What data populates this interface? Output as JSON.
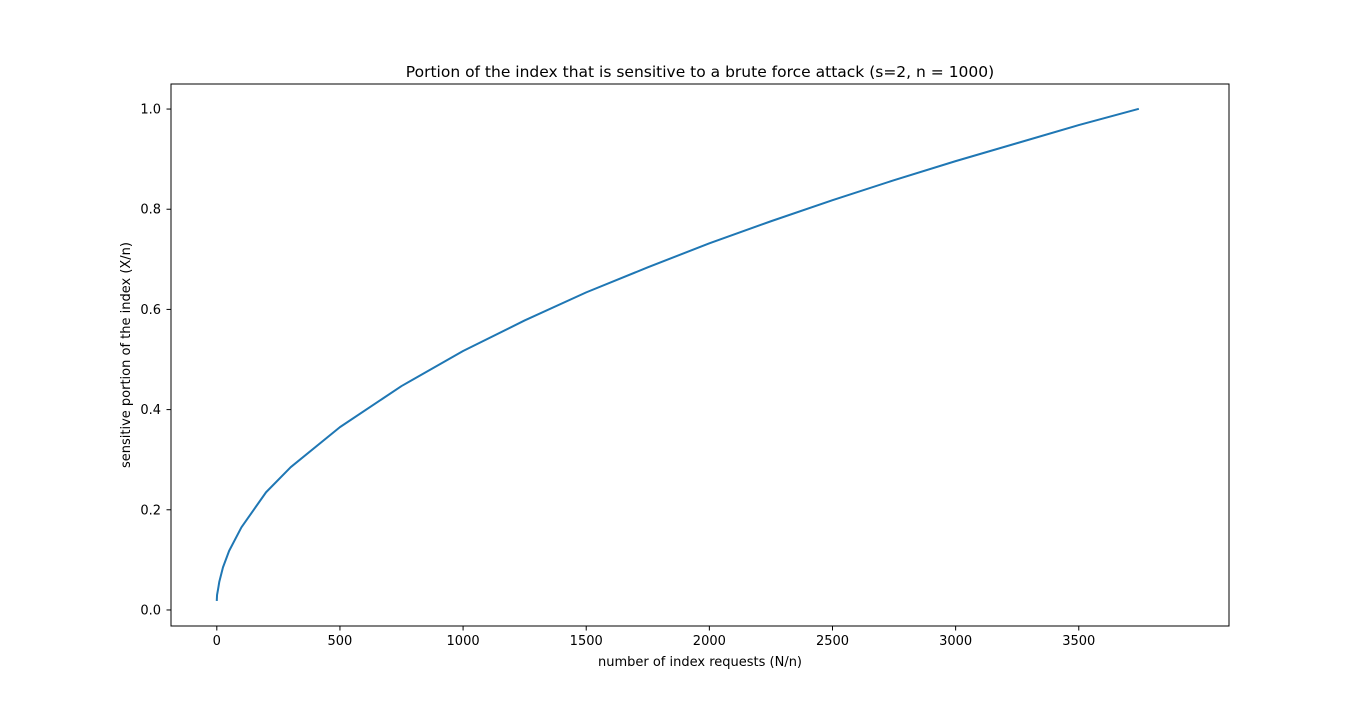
{
  "chart_data": {
    "type": "line",
    "title": "Portion of the index that is sensitive to a brute force attack (s=2, n = 1000)",
    "xlabel": "number of index requests (N/n)",
    "ylabel": "sensitive portion of the index (X/n)",
    "xlim": [
      -186,
      4110
    ],
    "ylim": [
      -0.032,
      1.05
    ],
    "xticks": [
      0,
      500,
      1000,
      1500,
      2000,
      2500,
      3000,
      3500
    ],
    "yticks": [
      0.0,
      0.2,
      0.4,
      0.6,
      0.8,
      1.0
    ],
    "xtick_labels": [
      "0",
      "500",
      "1000",
      "1500",
      "2000",
      "2500",
      "3000",
      "3500"
    ],
    "ytick_labels": [
      "0.0",
      "0.2",
      "0.4",
      "0.6",
      "0.8",
      "1.0"
    ],
    "grid": false,
    "series": [
      {
        "color": "#1f77b4",
        "x": [
          0,
          1,
          5,
          10,
          25,
          50,
          100,
          200,
          300,
          500,
          750,
          1000,
          1250,
          1500,
          1750,
          2000,
          2250,
          2500,
          2750,
          3000,
          3250,
          3500,
          3740
        ],
        "y": [
          0.02,
          0.03,
          0.041,
          0.056,
          0.085,
          0.118,
          0.165,
          0.235,
          0.285,
          0.365,
          0.447,
          0.517,
          0.578,
          0.634,
          0.684,
          0.732,
          0.776,
          0.818,
          0.858,
          0.896,
          0.932,
          0.968,
          1.0
        ]
      }
    ]
  }
}
